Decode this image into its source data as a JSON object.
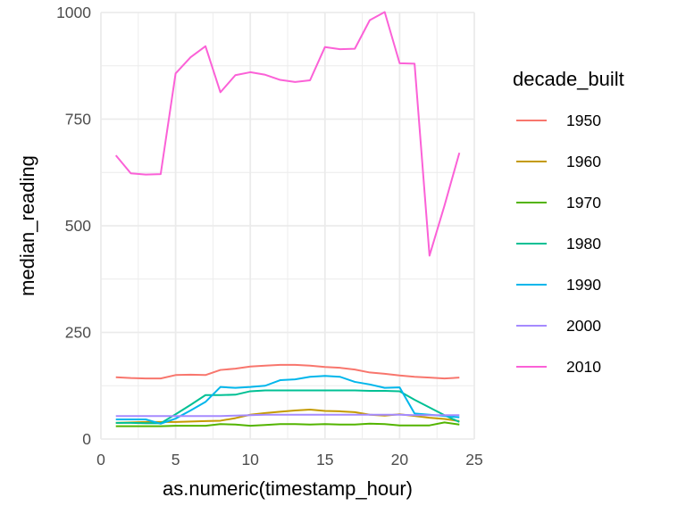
{
  "chart_data": {
    "type": "line",
    "title": "",
    "xlabel": "as.numeric(timestamp_hour)",
    "ylabel": "median_reading",
    "xlim": [
      0,
      25
    ],
    "ylim": [
      0,
      1000
    ],
    "x_ticks": [
      0,
      5,
      10,
      15,
      20,
      25
    ],
    "y_ticks": [
      0,
      250,
      500,
      750,
      1000
    ],
    "grid": true,
    "legend_title": "decade_built",
    "legend_position": "right",
    "x": [
      1,
      2,
      3,
      4,
      5,
      6,
      7,
      8,
      9,
      10,
      11,
      12,
      13,
      14,
      15,
      16,
      17,
      18,
      19,
      20,
      21,
      22,
      23,
      24
    ],
    "series": [
      {
        "name": "1950",
        "color": "#F8766D",
        "values": [
          145,
          143,
          142,
          142,
          150,
          151,
          150,
          162,
          165,
          170,
          172,
          174,
          174,
          172,
          169,
          167,
          163,
          156,
          153,
          149,
          146,
          144,
          142,
          144
        ]
      },
      {
        "name": "1960",
        "color": "#C49A00",
        "values": [
          38,
          39,
          40,
          40,
          40,
          41,
          42,
          43,
          49,
          57,
          61,
          64,
          67,
          69,
          66,
          65,
          63,
          57,
          55,
          58,
          54,
          50,
          47,
          42
        ]
      },
      {
        "name": "1970",
        "color": "#53B400",
        "values": [
          30,
          30,
          30,
          30,
          31,
          31,
          31,
          35,
          34,
          31,
          33,
          35,
          35,
          34,
          35,
          34,
          34,
          36,
          35,
          32,
          32,
          32,
          39,
          34
        ]
      },
      {
        "name": "1980",
        "color": "#00C094",
        "values": [
          38,
          38,
          37,
          37,
          58,
          80,
          103,
          103,
          104,
          112,
          114,
          114,
          114,
          114,
          114,
          114,
          114,
          113,
          113,
          112,
          92,
          74,
          56,
          40
        ]
      },
      {
        "name": "1990",
        "color": "#00B6EB",
        "values": [
          46,
          46,
          46,
          36,
          48,
          67,
          87,
          122,
          120,
          122,
          125,
          138,
          140,
          146,
          148,
          146,
          134,
          128,
          120,
          121,
          60,
          57,
          54,
          51
        ]
      },
      {
        "name": "2000",
        "color": "#A58AFF",
        "values": [
          54,
          54,
          54,
          54,
          54,
          54,
          54,
          54,
          55,
          56,
          57,
          57,
          57,
          57,
          57,
          57,
          57,
          57,
          57,
          57,
          56,
          56,
          56,
          56
        ]
      },
      {
        "name": "2010",
        "color": "#FB61D7",
        "values": [
          665,
          623,
          620,
          621,
          857,
          895,
          921,
          813,
          853,
          860,
          854,
          842,
          837,
          841,
          919,
          914,
          915,
          982,
          1001,
          881,
          880,
          430,
          547,
          671
        ]
      }
    ]
  }
}
